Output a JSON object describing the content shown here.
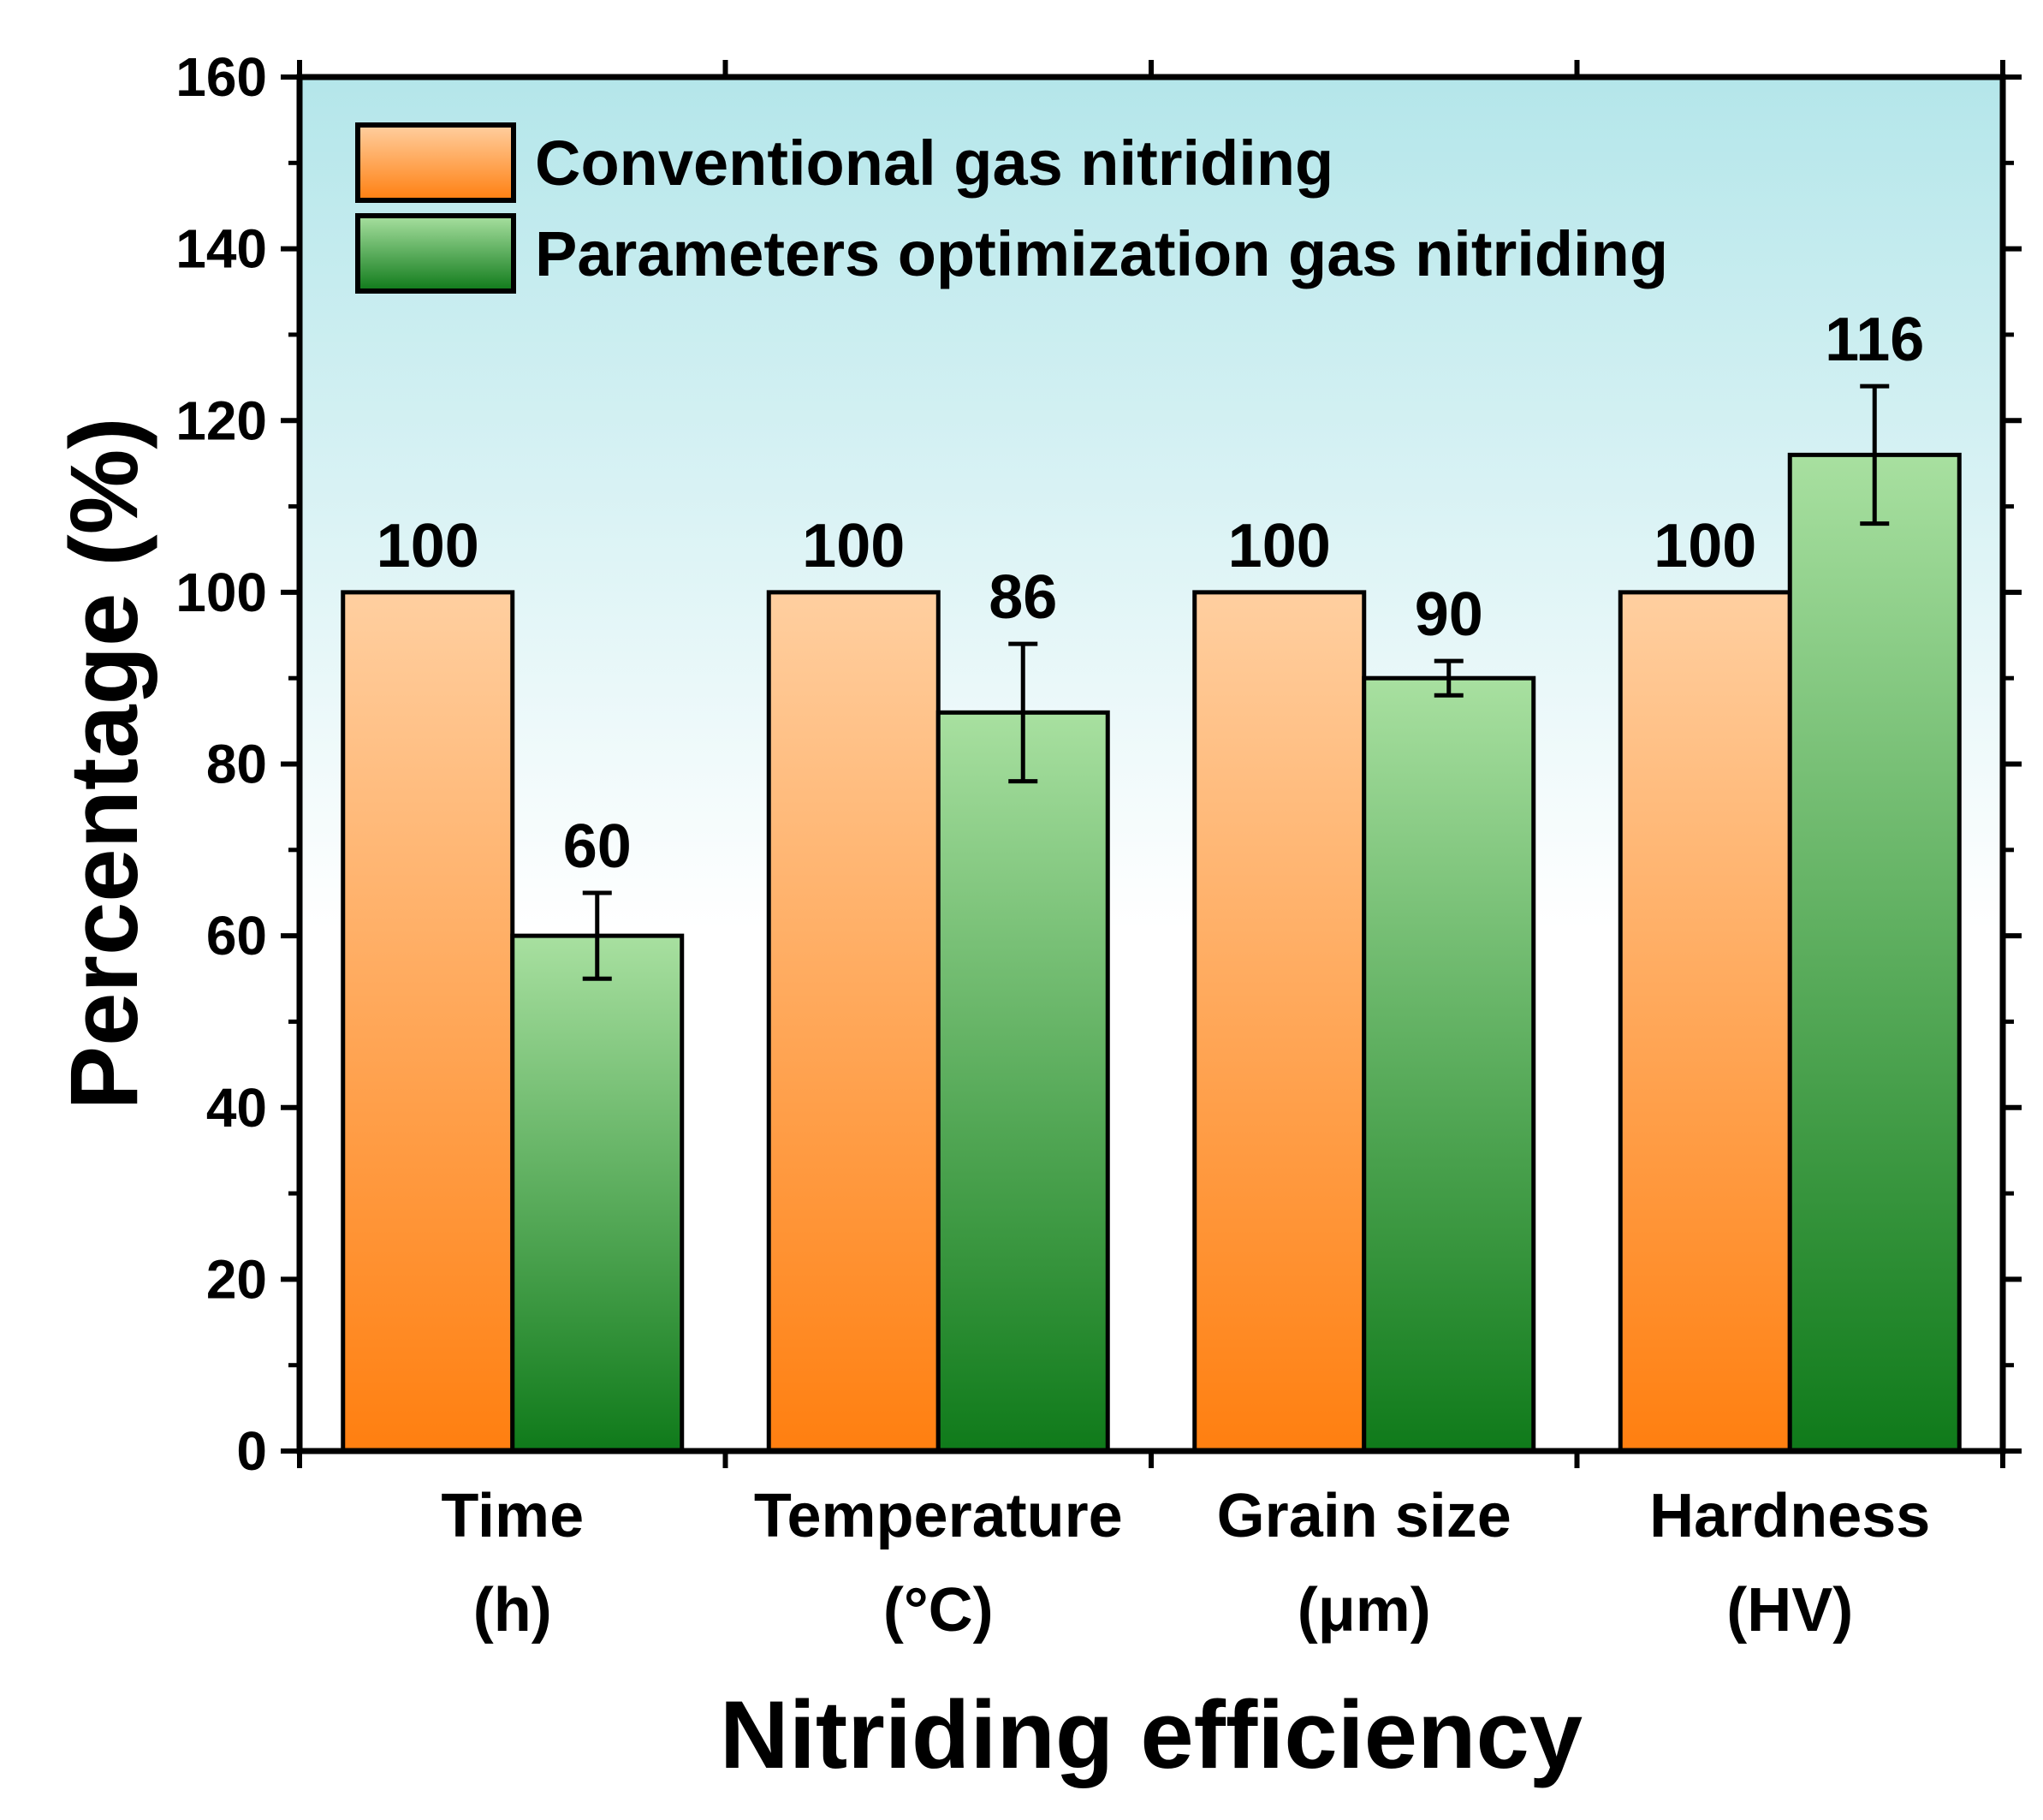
{
  "chart_data": {
    "type": "bar",
    "categories": [
      {
        "line1": "Time",
        "line2": "(h)"
      },
      {
        "line1": "Temperature",
        "line2": "(°C)"
      },
      {
        "line1": "Grain size",
        "line2": "(μm)"
      },
      {
        "line1": "Hardness",
        "line2": "(HV)"
      }
    ],
    "series": [
      {
        "name": "Conventional gas nitriding",
        "values": [
          100,
          100,
          100,
          100
        ],
        "labels": [
          "100",
          "100",
          "100",
          "100"
        ],
        "errors": [
          null,
          null,
          null,
          null
        ],
        "gradient_top": "#FFCFA0",
        "gradient_bottom": "#FF7F10"
      },
      {
        "name": "Parameters optimization gas nitriding",
        "values": [
          60,
          86,
          90,
          116
        ],
        "labels": [
          "60",
          "86",
          "90",
          "116"
        ],
        "errors": [
          5,
          8,
          2,
          8
        ],
        "gradient_top": "#A8E0A0",
        "gradient_bottom": "#0F7A1A"
      }
    ],
    "xlabel": "Nitriding efficiency",
    "ylabel": "Percentage (%)",
    "ylim": [
      0,
      160
    ],
    "yticks": [
      0,
      20,
      40,
      60,
      80,
      100,
      120,
      140,
      160
    ],
    "legend_position": "top-left",
    "background_gradient_top": "#B4E6EA",
    "background_gradient_bottom": "#FFFFFF"
  }
}
